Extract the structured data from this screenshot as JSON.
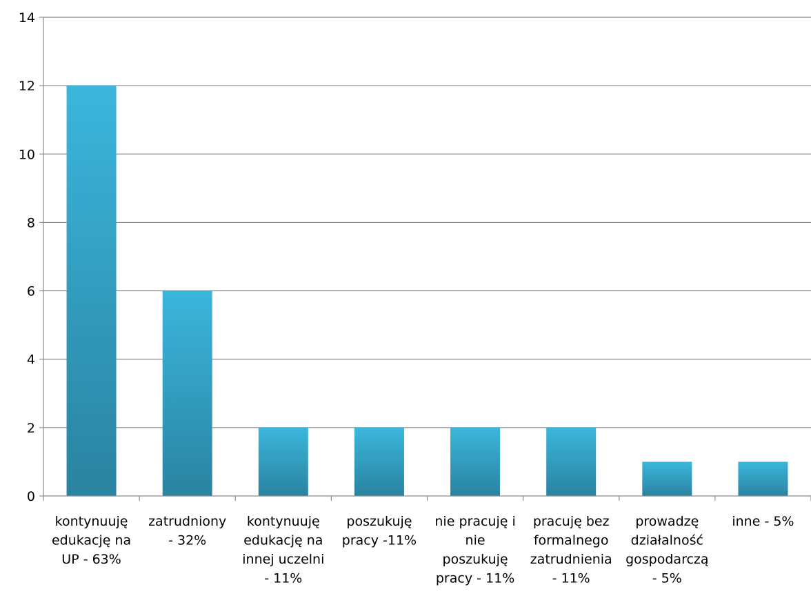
{
  "chart_data": {
    "type": "bar",
    "categories": [
      [
        "kontynuuję",
        "edukację na",
        "UP - 63%"
      ],
      [
        "zatrudniony",
        "- 32%"
      ],
      [
        "kontynuuję",
        "edukację na",
        "innej uczelni",
        "- 11%"
      ],
      [
        "poszukuję",
        "pracy -11%"
      ],
      [
        "nie pracuję i",
        "nie",
        "poszukuję",
        "pracy - 11%"
      ],
      [
        "pracuję bez",
        "formalnego",
        "zatrudnienia",
        "- 11%"
      ],
      [
        "prowadzę",
        "działalność",
        "gospodarczą",
        "- 5%"
      ],
      [
        "inne - 5%"
      ]
    ],
    "values": [
      12,
      6,
      2,
      2,
      2,
      2,
      1,
      1
    ],
    "ylim": [
      0,
      14
    ],
    "yticks": [
      "0",
      "2",
      "4",
      "6",
      "8",
      "10",
      "12",
      "14"
    ],
    "grid": true,
    "legend": "none",
    "title": "",
    "xlabel": "",
    "ylabel": "",
    "colors": {
      "bar_top": "#3bb6dc",
      "bar_bottom": "#2a83a1",
      "grid": "#8c8c8c",
      "axis": "#8c8c8c"
    }
  }
}
